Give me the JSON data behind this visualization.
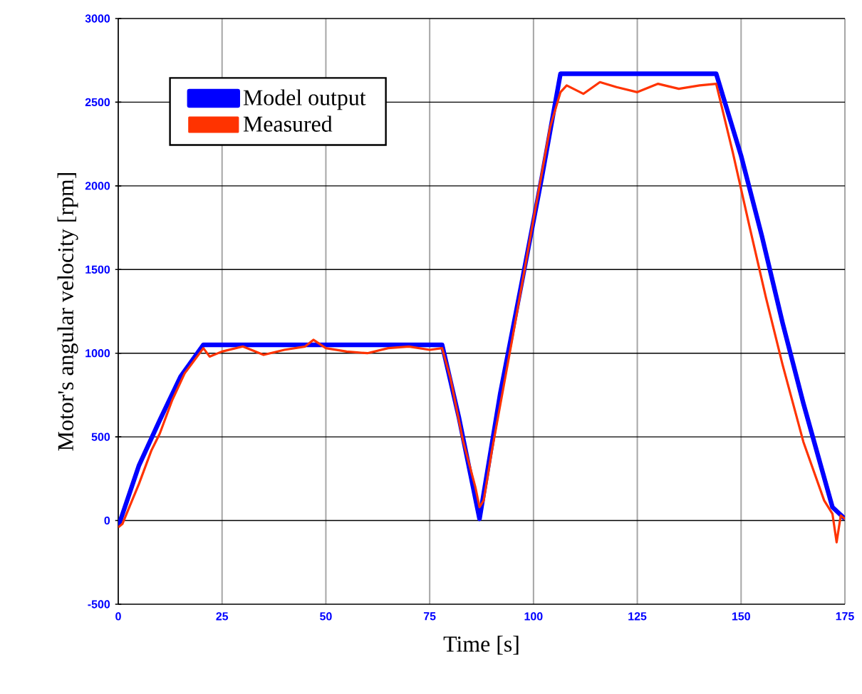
{
  "chart_data": {
    "type": "line",
    "xlabel": "Time [s]",
    "ylabel": "Motor's angular velocity [rpm]",
    "xlim": [
      0,
      175
    ],
    "ylim": [
      -500,
      3000
    ],
    "xticks": [
      0,
      25,
      50,
      75,
      100,
      125,
      150,
      175
    ],
    "yticks": [
      -500,
      0,
      500,
      1000,
      1500,
      2000,
      2500,
      3000
    ],
    "grid": true,
    "legend": "top left",
    "line_style": "solid",
    "marker": "none",
    "series": [
      {
        "name": "Model output",
        "color": "#0000ff",
        "x": [
          0,
          0.5,
          5,
          10,
          15,
          20.5,
          30,
          40,
          50,
          60,
          70,
          78,
          82,
          87,
          92,
          97,
          102,
          106.5,
          115,
          125,
          135,
          144,
          150,
          155,
          160,
          165,
          172,
          175
        ],
        "values": [
          -30,
          0,
          330,
          600,
          860,
          1050,
          1050,
          1050,
          1050,
          1050,
          1050,
          1050,
          620,
          10,
          760,
          1400,
          2050,
          2670,
          2670,
          2670,
          2670,
          2670,
          2180,
          1700,
          1180,
          700,
          80,
          10
        ]
      },
      {
        "name": "Measured",
        "color": "#ff3300",
        "x": [
          0,
          1,
          2,
          5,
          8,
          10,
          13,
          16,
          20.5,
          22,
          25,
          30,
          35,
          40,
          45,
          47,
          50,
          55,
          60,
          65,
          70,
          75,
          78,
          80,
          83,
          86,
          87,
          88,
          90,
          95,
          100,
          104,
          106.5,
          108,
          112,
          116,
          120,
          125,
          130,
          135,
          140,
          144,
          148,
          152,
          156,
          160,
          165,
          170,
          172,
          173,
          174,
          175
        ],
        "values": [
          -40,
          -20,
          40,
          220,
          420,
          520,
          720,
          880,
          1030,
          980,
          1010,
          1040,
          990,
          1020,
          1040,
          1080,
          1030,
          1010,
          1000,
          1030,
          1040,
          1020,
          1030,
          850,
          480,
          200,
          80,
          120,
          420,
          1100,
          1800,
          2350,
          2560,
          2600,
          2550,
          2620,
          2590,
          2560,
          2610,
          2580,
          2600,
          2610,
          2200,
          1760,
          1330,
          930,
          470,
          120,
          40,
          -130,
          30,
          10
        ]
      }
    ]
  }
}
